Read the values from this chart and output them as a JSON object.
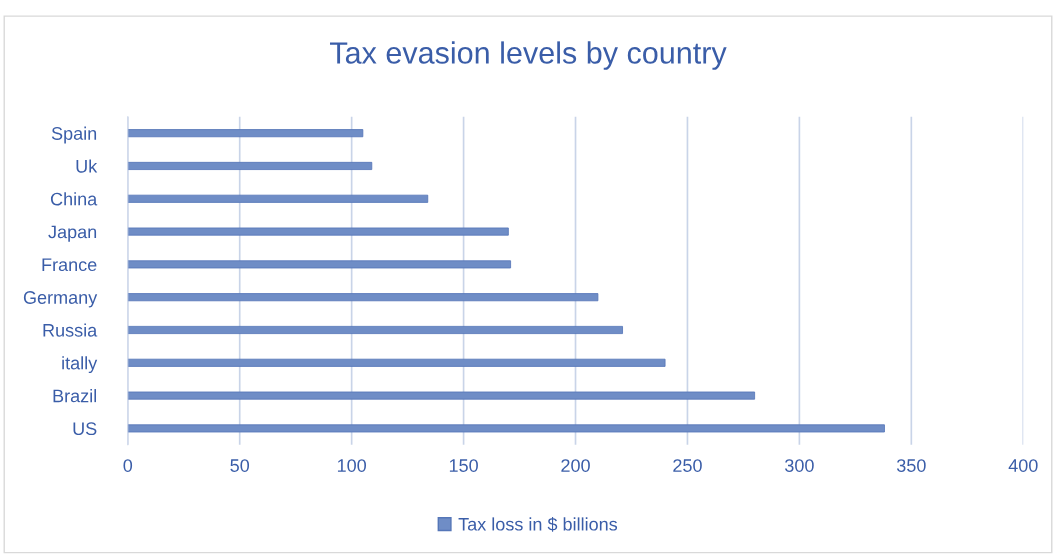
{
  "chart_data": {
    "type": "bar",
    "orientation": "horizontal",
    "title": "Tax evasion levels by country",
    "categories": [
      "Spain",
      "Uk",
      "China",
      "Japan",
      "France",
      "Germany",
      "Russia",
      "itally",
      "Brazil",
      "US"
    ],
    "series": [
      {
        "name": "Tax loss in $ billions",
        "color": "#6f8dc6",
        "values": [
          105,
          109,
          134,
          170,
          171,
          210,
          221,
          240,
          280,
          338
        ]
      }
    ],
    "xlim": [
      0,
      400
    ],
    "xticks": [
      0,
      50,
      100,
      150,
      200,
      250,
      300,
      350,
      400
    ],
    "grid": "x",
    "legend": "bottom"
  }
}
